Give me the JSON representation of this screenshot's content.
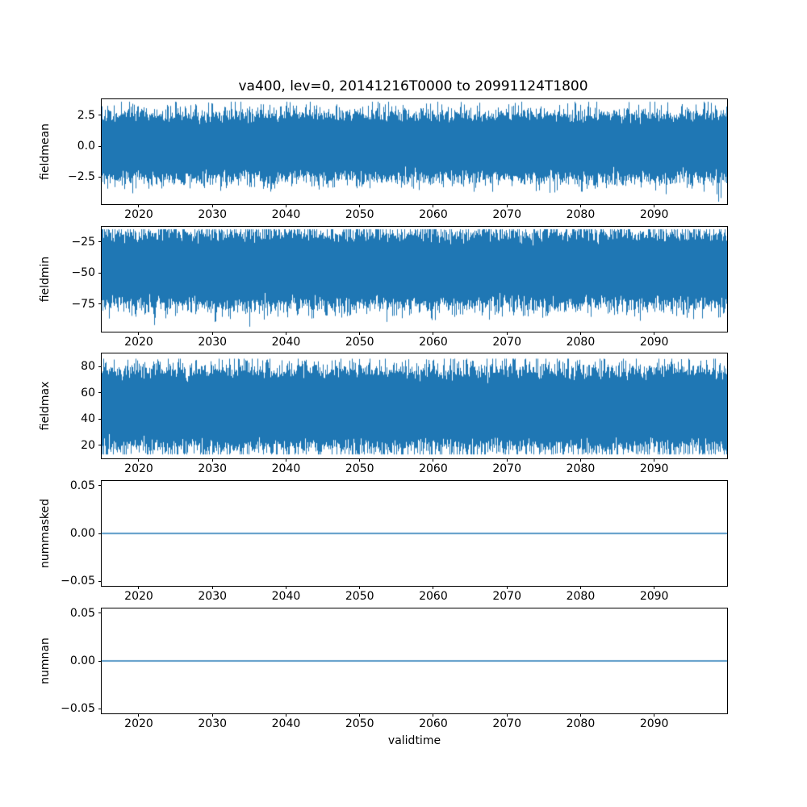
{
  "figure": {
    "title": "va400, lev=0, 20141216T0000 to 20991124T1800",
    "xlabel": "validtime",
    "background_color": "#ffffff",
    "line_color": "#1f77b4",
    "axis_color": "#000000"
  },
  "chart_data": [
    {
      "type": "line",
      "title": "va400, lev=0, 20141216T0000 to 20991124T1800",
      "xlabel": "validtime",
      "ylabel": "fieldmean",
      "x_range": [
        2014.96,
        2099.9
      ],
      "xticks": [
        2020,
        2030,
        2040,
        2050,
        2060,
        2070,
        2080,
        2090
      ],
      "xtick_labels": [
        "2020",
        "2030",
        "2040",
        "2050",
        "2060",
        "2070",
        "2080",
        "2090"
      ],
      "ylim": [
        -4.7,
        3.8
      ],
      "yticks": [
        2.5,
        0.0,
        -2.5
      ],
      "ytick_labels": [
        "2.5",
        "0.0",
        "−2.5"
      ],
      "grid": false,
      "legend": false,
      "signal": {
        "kind": "gaussian-noise",
        "mean": 0.0,
        "std": 1.0,
        "observed_min": -4.5,
        "observed_max": 3.6,
        "samples_per_column": 160,
        "seed": 101
      }
    },
    {
      "type": "line",
      "ylabel": "fieldmin",
      "x_range": [
        2014.96,
        2099.9
      ],
      "xticks": [
        2020,
        2030,
        2040,
        2050,
        2060,
        2070,
        2080,
        2090
      ],
      "xtick_labels": [
        "2020",
        "2030",
        "2040",
        "2050",
        "2060",
        "2070",
        "2080",
        "2090"
      ],
      "ylim": [
        -97,
        -13
      ],
      "yticks": [
        -25,
        -50,
        -75
      ],
      "ytick_labels": [
        "−25",
        "−50",
        "−75"
      ],
      "grid": false,
      "legend": false,
      "signal": {
        "kind": "gaussian-noise",
        "mean": -47,
        "std": 11,
        "observed_min": -93,
        "observed_max": -15,
        "samples_per_column": 160,
        "seed": 202
      }
    },
    {
      "type": "line",
      "ylabel": "fieldmax",
      "x_range": [
        2014.96,
        2099.9
      ],
      "xticks": [
        2020,
        2030,
        2040,
        2050,
        2060,
        2070,
        2080,
        2090
      ],
      "xtick_labels": [
        "2020",
        "2030",
        "2040",
        "2050",
        "2060",
        "2070",
        "2080",
        "2090"
      ],
      "ylim": [
        10,
        90
      ],
      "yticks": [
        80,
        60,
        40,
        20
      ],
      "ytick_labels": [
        "80",
        "60",
        "40",
        "20"
      ],
      "grid": false,
      "legend": false,
      "signal": {
        "kind": "gaussian-noise",
        "mean": 48,
        "std": 11.5,
        "observed_min": 13,
        "observed_max": 86,
        "samples_per_column": 160,
        "seed": 303
      }
    },
    {
      "type": "line",
      "ylabel": "nummasked",
      "x_range": [
        2014.96,
        2099.9
      ],
      "xticks": [
        2020,
        2030,
        2040,
        2050,
        2060,
        2070,
        2080,
        2090
      ],
      "xtick_labels": [
        "2020",
        "2030",
        "2040",
        "2050",
        "2060",
        "2070",
        "2080",
        "2090"
      ],
      "ylim": [
        -0.055,
        0.055
      ],
      "yticks": [
        0.05,
        0.0,
        -0.05
      ],
      "ytick_labels": [
        "0.05",
        "0.00",
        "−0.05"
      ],
      "grid": false,
      "legend": false,
      "signal": {
        "kind": "constant",
        "value": 0.0
      }
    },
    {
      "type": "line",
      "ylabel": "numnan",
      "x_range": [
        2014.96,
        2099.9
      ],
      "xticks": [
        2020,
        2030,
        2040,
        2050,
        2060,
        2070,
        2080,
        2090
      ],
      "xtick_labels": [
        "2020",
        "2030",
        "2040",
        "2050",
        "2060",
        "2070",
        "2080",
        "2090"
      ],
      "ylim": [
        -0.055,
        0.055
      ],
      "yticks": [
        0.05,
        0.0,
        -0.05
      ],
      "ytick_labels": [
        "0.05",
        "0.00",
        "−0.05"
      ],
      "grid": false,
      "legend": false,
      "signal": {
        "kind": "constant",
        "value": 0.0
      }
    }
  ]
}
